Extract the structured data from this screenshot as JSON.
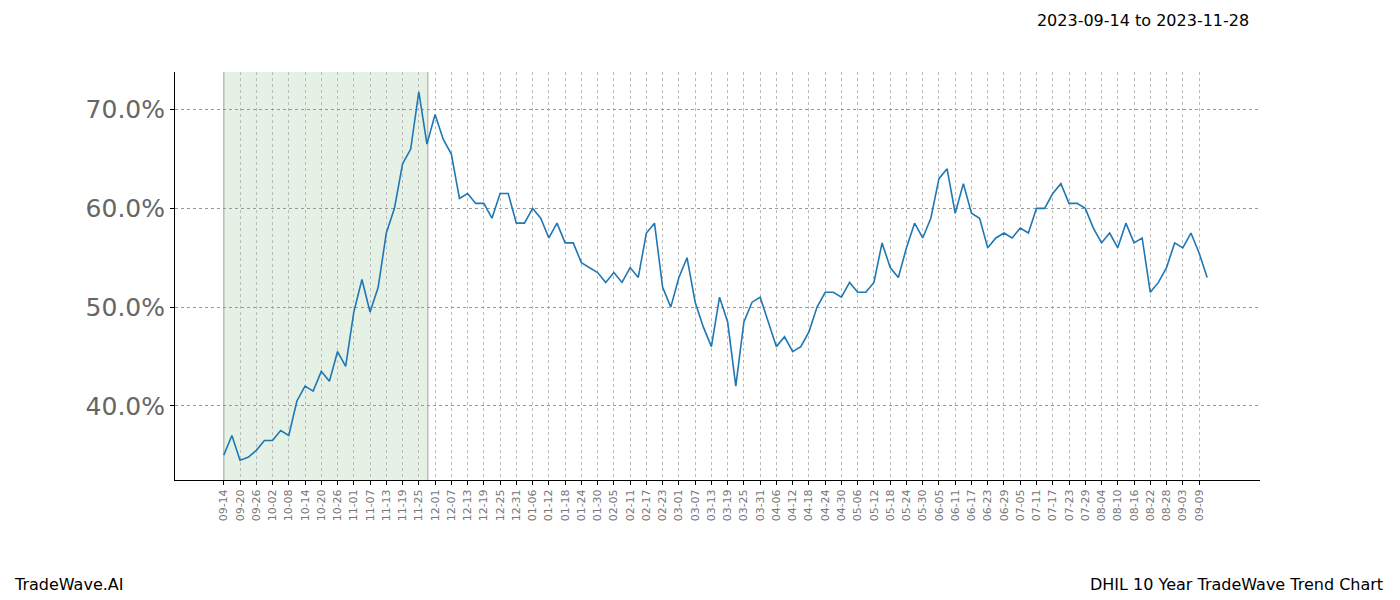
{
  "chart_data": {
    "type": "line",
    "title": "2023-09-14 to 2023-11-28",
    "annotations": [
      "TradeWave.AI",
      "DHIL 10 Year TradeWave Trend Chart"
    ],
    "categories": [
      "09-14",
      null,
      "09-20",
      null,
      "09-26",
      null,
      "10-02",
      null,
      "10-08",
      null,
      "10-14",
      null,
      "10-20",
      null,
      "10-26",
      null,
      "11-01",
      null,
      "11-07",
      null,
      "11-13",
      null,
      "11-19",
      null,
      "11-25",
      null,
      "12-01",
      null,
      "12-07",
      null,
      "12-13",
      null,
      "12-19",
      null,
      "12-25",
      null,
      "12-31",
      null,
      "01-06",
      null,
      "01-12",
      null,
      "01-18",
      null,
      "01-24",
      null,
      "01-30",
      null,
      "02-05",
      null,
      "02-11",
      null,
      "02-17",
      null,
      "02-23",
      null,
      "03-01",
      null,
      "03-07",
      null,
      "03-13",
      null,
      "03-19",
      null,
      "03-25",
      null,
      "03-31",
      null,
      "04-06",
      null,
      "04-12",
      null,
      "04-18",
      null,
      "04-24",
      null,
      "04-30",
      null,
      "05-06",
      null,
      "05-12",
      null,
      "05-18",
      null,
      "05-24",
      null,
      "05-30",
      null,
      "06-05",
      null,
      "06-11",
      null,
      "06-17",
      null,
      "06-23",
      null,
      "06-29",
      null,
      "07-05",
      null,
      "07-11",
      null,
      "07-17",
      null,
      "07-23",
      null,
      "07-29",
      null,
      "08-04",
      null,
      "08-10",
      null,
      "08-16",
      null,
      "08-22",
      null,
      "08-28",
      null,
      "09-03",
      null,
      "09-09",
      null
    ],
    "values": [
      35,
      37,
      34.5,
      34.8,
      35.5,
      36.5,
      36.5,
      37.5,
      37,
      40.5,
      42,
      41.5,
      43.5,
      42.5,
      45.5,
      44,
      49.5,
      52.8,
      49.5,
      52,
      57.5,
      60,
      64.5,
      66,
      71.8,
      66.5,
      69.5,
      67,
      65.5,
      61,
      61.5,
      60.5,
      60.5,
      59,
      61.5,
      61.5,
      58.5,
      58.5,
      60,
      59,
      57,
      58.5,
      56.5,
      56.5,
      54.5,
      54,
      53.5,
      52.5,
      53.5,
      52.5,
      54,
      53,
      57.5,
      58.5,
      52,
      50,
      53,
      55,
      50.5,
      48,
      46,
      51,
      48.5,
      42,
      48.5,
      50.5,
      51,
      48.5,
      46,
      47,
      45.5,
      46,
      47.5,
      50,
      51.5,
      51.5,
      51,
      52.5,
      51.5,
      51.5,
      52.5,
      56.5,
      54,
      53,
      56,
      58.5,
      57,
      59,
      63,
      64,
      59.5,
      62.5,
      59.5,
      59,
      56,
      57,
      57.5,
      57,
      58,
      57.5,
      60,
      60,
      61.5,
      62.5,
      60.5,
      60.5,
      60,
      58,
      56.5,
      57.5,
      56,
      58.5,
      56.5,
      57,
      51.5,
      52.5,
      54,
      56.5,
      56,
      57.5,
      55.5,
      53
    ],
    "color": "#1f77b4",
    "highlight": [
      0,
      25.1
    ],
    "xlim": [
      -6,
      127.5
    ],
    "ylim": [
      32.5,
      73.8
    ],
    "yticks": [
      {
        "value": 40,
        "label": "40.0%"
      },
      {
        "value": 50,
        "label": "50.0%"
      },
      {
        "value": 60,
        "label": "60.0%"
      },
      {
        "value": 70,
        "label": "70.0%"
      }
    ],
    "grid": true
  }
}
